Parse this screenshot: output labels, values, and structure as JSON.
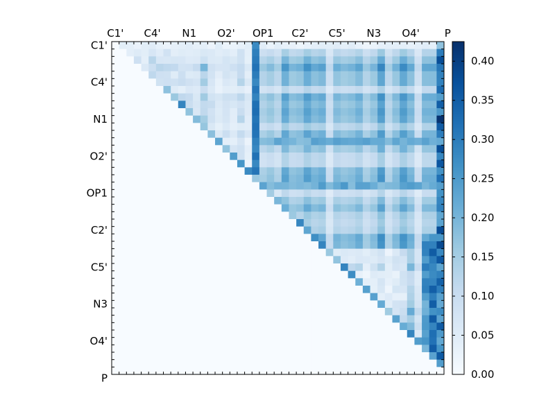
{
  "chart_data": {
    "type": "heatmap",
    "title": "",
    "xlabel": "",
    "ylabel": "",
    "grid": false,
    "colormap": "Blues",
    "colormap_colors": [
      "#f7fbff",
      "#deebf7",
      "#c6dbef",
      "#9ecae1",
      "#6baed6",
      "#4292c6",
      "#2171b5",
      "#08519c",
      "#08306b"
    ],
    "matrix_size": 45,
    "upper_triangular": true,
    "x_tick_labels": [
      "C1'",
      "C4'",
      "N1",
      "O2'",
      "OP1",
      "C2'",
      "C5'",
      "N3",
      "O4'",
      "P"
    ],
    "y_tick_labels": [
      "C1'",
      "C4'",
      "N1",
      "O2'",
      "OP1",
      "C2'",
      "C5'",
      "N3",
      "O4'",
      "P"
    ],
    "x_axis_position": "top",
    "colorbar": {
      "min": 0.0,
      "max": 0.425,
      "ticks": [
        "0.00",
        "0.05",
        "0.10",
        "0.15",
        "0.20",
        "0.25",
        "0.30",
        "0.35",
        "0.40"
      ],
      "position": "right"
    },
    "approx_value_range": [
      0.0,
      0.42
    ],
    "notable_features": [
      "Lower triangle is all 0.00",
      "Column 19 shows strong values around 0.28-0.32 in rows 0-18",
      "Last column (P) has values up to ~0.42 near row 10",
      "Upper triangle typically 0.10-0.25"
    ]
  }
}
